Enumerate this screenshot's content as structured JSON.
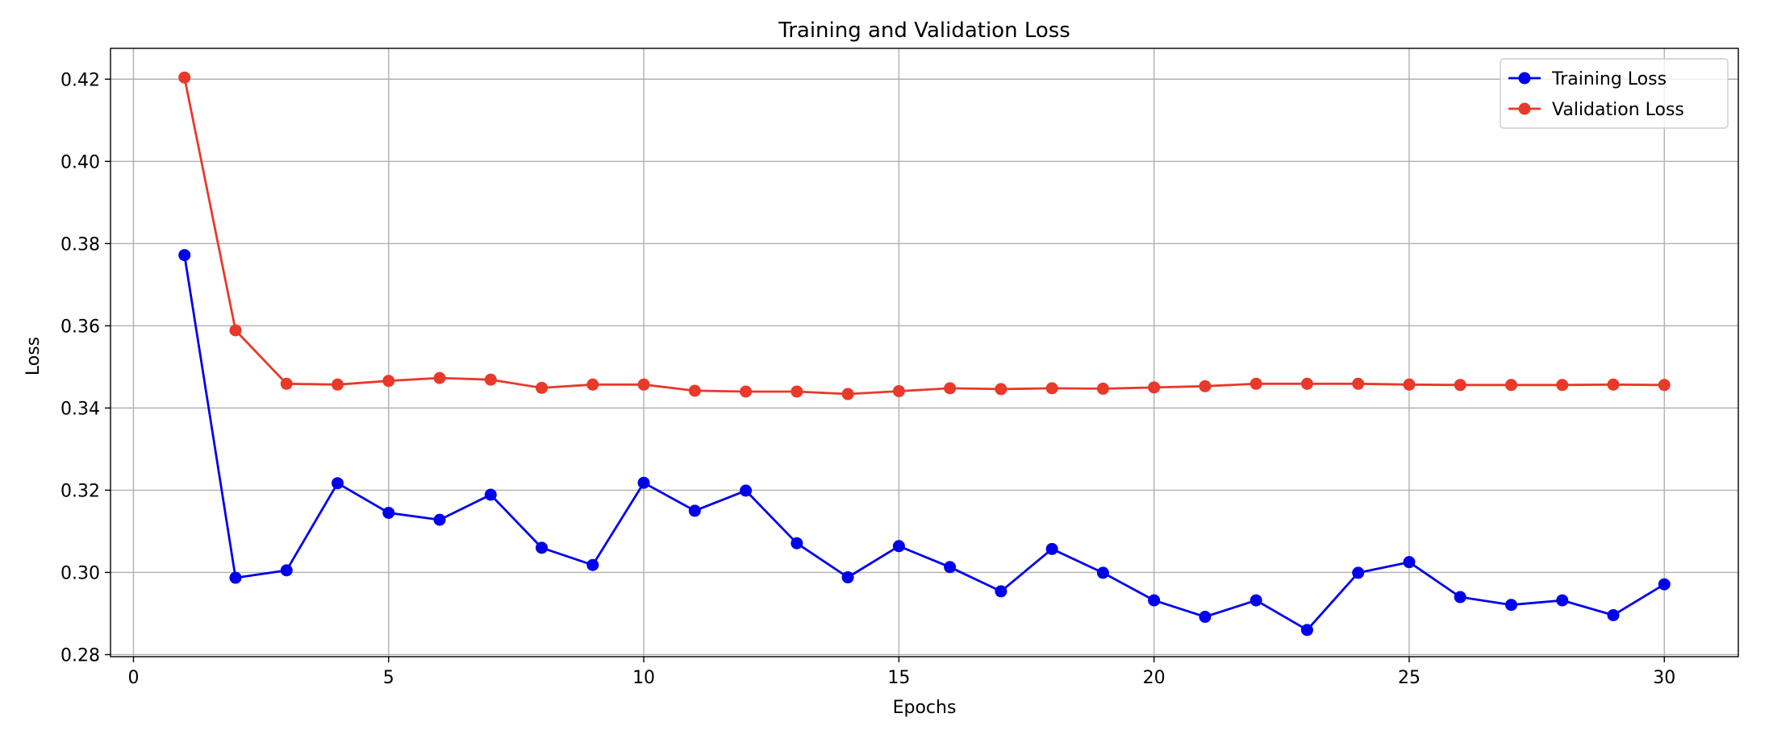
{
  "chart_data": {
    "type": "line",
    "title": "Training and Validation Loss",
    "xlabel": "Epochs",
    "ylabel": "Loss",
    "xlim": [
      -0.45,
      31.45
    ],
    "ylim": [
      0.2795,
      0.4275
    ],
    "xticks": [
      0,
      5,
      10,
      15,
      20,
      25,
      30
    ],
    "yticks": [
      0.28,
      0.3,
      0.32,
      0.34,
      0.36,
      0.38,
      0.4,
      0.42
    ],
    "xtick_labels": [
      "0",
      "5",
      "10",
      "15",
      "20",
      "25",
      "30"
    ],
    "ytick_labels": [
      "0.28",
      "0.30",
      "0.32",
      "0.34",
      "0.36",
      "0.38",
      "0.40",
      "0.42"
    ],
    "grid": true,
    "legend_position": "top-right",
    "x": [
      1,
      2,
      3,
      4,
      5,
      6,
      7,
      8,
      9,
      10,
      11,
      12,
      13,
      14,
      15,
      16,
      17,
      18,
      19,
      20,
      21,
      22,
      23,
      24,
      25,
      26,
      27,
      28,
      29,
      30
    ],
    "series": [
      {
        "name": "Training Loss",
        "color": "#0000ee",
        "marker": "circle",
        "values": [
          0.3772,
          0.2987,
          0.3005,
          0.3217,
          0.3145,
          0.3128,
          0.3189,
          0.306,
          0.3018,
          0.3218,
          0.315,
          0.3199,
          0.3071,
          0.2988,
          0.3064,
          0.3013,
          0.2954,
          0.3057,
          0.2999,
          0.2932,
          0.2892,
          0.2932,
          0.286,
          0.2999,
          0.3025,
          0.294,
          0.2921,
          0.2932,
          0.2896,
          0.2971
        ]
      },
      {
        "name": "Validation Loss",
        "color": "#e8392a",
        "marker": "circle",
        "values": [
          0.4204,
          0.3589,
          0.3459,
          0.3457,
          0.3466,
          0.3473,
          0.3469,
          0.3449,
          0.3457,
          0.3457,
          0.3442,
          0.344,
          0.344,
          0.3434,
          0.3441,
          0.3448,
          0.3446,
          0.3448,
          0.3447,
          0.345,
          0.3453,
          0.3459,
          0.3459,
          0.3459,
          0.3457,
          0.3456,
          0.3456,
          0.3456,
          0.3457,
          0.3456
        ]
      }
    ]
  }
}
